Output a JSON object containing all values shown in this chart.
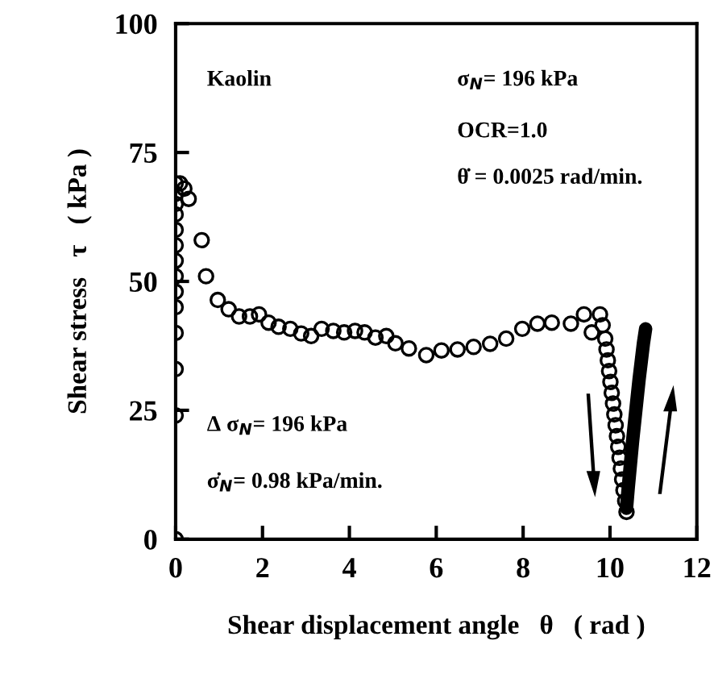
{
  "chart_data": {
    "type": "scatter",
    "xlabel": "Shear displacement angle   θ   ( rad )",
    "ylabel": "Shear stress   τ   ( kPa )",
    "xlim": [
      0,
      12
    ],
    "ylim": [
      0,
      100
    ],
    "xticks": [
      0,
      2,
      4,
      6,
      8,
      10,
      12
    ],
    "yticks": [
      0,
      25,
      50,
      75,
      100
    ],
    "grid": false,
    "legend": false,
    "annotations": [
      "Kaolin",
      "σ$_{N}$= 196 kPa",
      "OCR=1.0",
      "θ̇ = 0.0025 rad/min.",
      "Δ σ$_{N}$= 196 kPa",
      "σ̇$_{N}$= 0.98 kPa/min."
    ],
    "series": [
      {
        "marker": "circle",
        "color": "#000000",
        "x": [
          0,
          0,
          0,
          0,
          0,
          0,
          0,
          0,
          0,
          0,
          0,
          0,
          0,
          0,
          0.1,
          0.2,
          0.3,
          0.6,
          0.7,
          0.97,
          1.22,
          1.46,
          1.71,
          1.92,
          2.14,
          2.37,
          2.64,
          2.89,
          3.12,
          3.36,
          3.63,
          3.88,
          4.13,
          4.35,
          4.6,
          4.85,
          5.06,
          5.37,
          5.77,
          6.12,
          6.49,
          6.86,
          7.24,
          7.61,
          7.98,
          8.33,
          8.66,
          9.1,
          9.4,
          9.77,
          9.58,
          9.83,
          9.89,
          9.92,
          9.95,
          9.98,
          10.01,
          10.04,
          10.07,
          10.1,
          10.13,
          10.16,
          10.19,
          10.22,
          10.25,
          10.28,
          10.31,
          10.35,
          10.38
        ],
        "values": [
          0,
          24,
          33,
          40,
          45,
          48,
          51,
          54,
          57,
          60,
          63,
          65,
          67,
          69,
          69,
          68,
          66,
          58,
          51,
          46.4,
          44.6,
          43.2,
          43.2,
          43.6,
          42,
          41.2,
          40.8,
          39.9,
          39.4,
          40.8,
          40.4,
          40.1,
          40.4,
          40.1,
          39.1,
          39.4,
          38,
          37,
          35.7,
          36.6,
          36.8,
          37.3,
          37.9,
          38.9,
          40.8,
          41.8,
          42,
          41.8,
          43.6,
          43.6,
          40.1,
          41.5,
          38.9,
          36.8,
          34.7,
          32.6,
          30.5,
          28.4,
          26.3,
          24.2,
          22.1,
          20,
          17.9,
          15.8,
          13.7,
          11.6,
          9.5,
          7.4,
          5.3
        ]
      },
      {
        "type": "line",
        "color": "#000000",
        "x": [
          10.38,
          10.42,
          10.47,
          10.52,
          10.57,
          10.62,
          10.67,
          10.72,
          10.77,
          10.82
        ],
        "values": [
          6,
          10,
          14.5,
          19,
          23,
          27,
          31,
          34.5,
          38,
          40.8
        ]
      }
    ]
  }
}
